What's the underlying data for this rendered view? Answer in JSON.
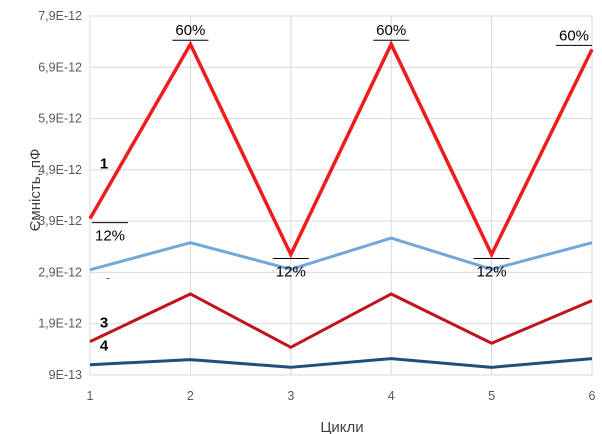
{
  "chart_data": {
    "type": "line",
    "xlabel": "Цикли",
    "ylabel": "Ємність, пФ",
    "x": [
      1,
      2,
      3,
      4,
      5,
      6
    ],
    "xlim": [
      1,
      6
    ],
    "ylim": [
      9e-13,
      7.9e-12
    ],
    "y_ticks": [
      9e-13,
      1.9e-12,
      2.9e-12,
      3.9e-12,
      4.9e-12,
      5.9e-12,
      6.9e-12,
      7.9e-12
    ],
    "y_tick_labels": [
      "9E-13",
      "1,9E-12",
      "2,9E-12",
      "3,9E-12",
      "4,9E-12",
      "5,9E-12",
      "6,9E-12",
      "7,9E-12"
    ],
    "x_tick_labels": [
      "1",
      "2",
      "3",
      "4",
      "5",
      "6"
    ],
    "grid": true,
    "series": [
      {
        "label": "1",
        "color": "#ee1c1c",
        "width": 3.5,
        "values": [
          3.95e-12,
          7.35e-12,
          3.25e-12,
          7.35e-12,
          3.25e-12,
          7.25e-12
        ]
      },
      {
        "label": "",
        "color": "#6fa8dc",
        "width": 3,
        "values": [
          2.95e-12,
          3.48e-12,
          2.96e-12,
          3.57e-12,
          2.96e-12,
          3.48e-12
        ]
      },
      {
        "label": "3",
        "color": "#c0141c",
        "width": 3,
        "values": [
          1.55e-12,
          2.48e-12,
          1.44e-12,
          2.48e-12,
          1.52e-12,
          2.35e-12
        ]
      },
      {
        "label": "4",
        "color": "#1f4e79",
        "width": 3,
        "values": [
          1.1e-12,
          1.2e-12,
          1.05e-12,
          1.22e-12,
          1.05e-12,
          1.22e-12
        ]
      }
    ],
    "annotations": [
      {
        "text": "60%",
        "x": 2,
        "y": 7.35e-12,
        "pos": "above"
      },
      {
        "text": "60%",
        "x": 4,
        "y": 7.35e-12,
        "pos": "above"
      },
      {
        "text": "60%",
        "x": 6,
        "y": 7.25e-12,
        "pos": "above"
      },
      {
        "text": "12%",
        "x": 1,
        "y": 3.95e-12,
        "pos": "below"
      },
      {
        "text": "12%",
        "x": 3,
        "y": 3.25e-12,
        "pos": "below"
      },
      {
        "text": "12%",
        "x": 5,
        "y": 3.25e-12,
        "pos": "below"
      }
    ],
    "series_marker_dash": "-"
  }
}
